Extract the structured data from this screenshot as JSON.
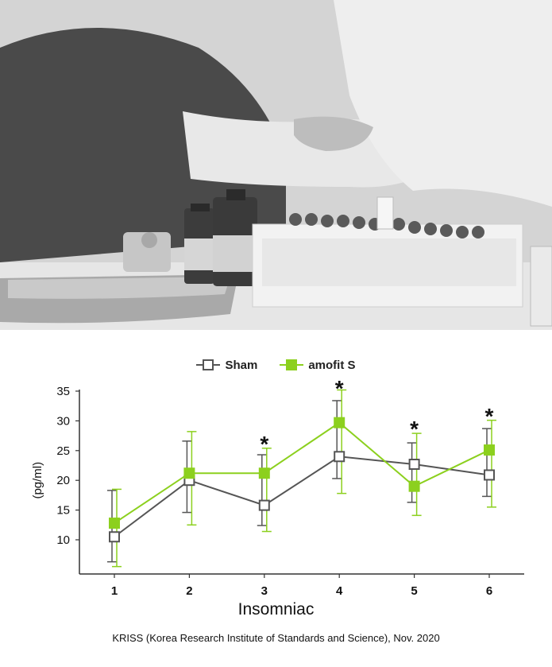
{
  "photo": {
    "alt": "Blood sample collection with vials in a rack"
  },
  "chart_data": {
    "type": "line",
    "x": [
      1,
      2,
      3,
      4,
      5,
      6
    ],
    "categories": [
      "1",
      "2",
      "3",
      "4",
      "5",
      "6"
    ],
    "yticks": [
      10,
      15,
      20,
      25,
      30,
      35
    ],
    "ylim": [
      5,
      35
    ],
    "ylabel": "(pg/ml)",
    "xlabel": "Insomniac",
    "legend_position": "top-center",
    "series": [
      {
        "name": "Sham",
        "color": "#555555",
        "marker": "open-square",
        "values": [
          10.5,
          20.0,
          15.8,
          24.0,
          22.7,
          20.9
        ],
        "error_low": [
          6.3,
          14.6,
          12.4,
          20.3,
          16.3,
          17.3
        ],
        "error_high": [
          18.3,
          26.6,
          24.3,
          33.4,
          26.3,
          28.7
        ]
      },
      {
        "name": "amofit S",
        "color": "#8cd01e",
        "marker": "filled-square",
        "values": [
          12.8,
          21.2,
          21.2,
          29.7,
          19.0,
          25.1
        ],
        "error_low": [
          5.5,
          12.5,
          11.4,
          17.8,
          14.1,
          15.5
        ],
        "error_high": [
          18.5,
          28.2,
          25.4,
          35.2,
          27.9,
          30.1
        ]
      }
    ],
    "significance": [
      {
        "x": 3,
        "label": "*"
      },
      {
        "x": 4,
        "label": "*"
      },
      {
        "x": 5,
        "label": "*"
      },
      {
        "x": 6,
        "label": "*"
      }
    ]
  },
  "source": "KRISS (Korea Research Institute of Standards and Science), Nov. 2020"
}
